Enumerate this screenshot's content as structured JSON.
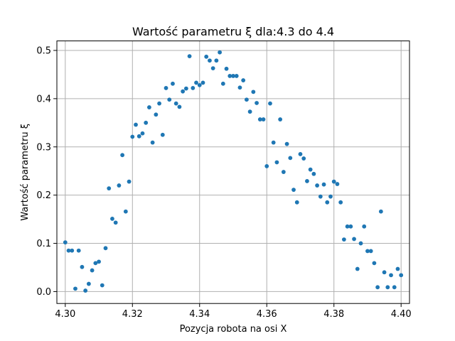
{
  "chart_data": {
    "type": "scatter",
    "title": "Wartość parametru ξ dla:4.3 do 4.4",
    "xlabel": "Pozycja robota na osi X",
    "ylabel": "Wartość parametru ξ",
    "xlim": [
      4.2975,
      4.4025
    ],
    "ylim": [
      -0.0247,
      0.5197
    ],
    "xticks": [
      4.3,
      4.32,
      4.34,
      4.36,
      4.38,
      4.4
    ],
    "xtick_labels": [
      "4.30",
      "4.32",
      "4.34",
      "4.36",
      "4.38",
      "4.40"
    ],
    "yticks": [
      0.0,
      0.1,
      0.2,
      0.3,
      0.4,
      0.5
    ],
    "ytick_labels": [
      "0.0",
      "0.1",
      "0.2",
      "0.3",
      "0.4",
      "0.5"
    ],
    "grid": true,
    "legend": "none",
    "color": "#1f77b4",
    "x": [
      4.3,
      4.301,
      4.302,
      4.303,
      4.304,
      4.305,
      4.306,
      4.307,
      4.308,
      4.309,
      4.31,
      4.311,
      4.312,
      4.313,
      4.314,
      4.315,
      4.316,
      4.317,
      4.318,
      4.319,
      4.32,
      4.321,
      4.322,
      4.323,
      4.324,
      4.325,
      4.326,
      4.327,
      4.328,
      4.329,
      4.33,
      4.331,
      4.332,
      4.333,
      4.334,
      4.335,
      4.336,
      4.337,
      4.338,
      4.339,
      4.34,
      4.341,
      4.342,
      4.343,
      4.344,
      4.345,
      4.346,
      4.347,
      4.348,
      4.349,
      4.35,
      4.351,
      4.352,
      4.353,
      4.354,
      4.355,
      4.356,
      4.357,
      4.358,
      4.359,
      4.36,
      4.361,
      4.362,
      4.363,
      4.364,
      4.365,
      4.366,
      4.367,
      4.368,
      4.369,
      4.37,
      4.371,
      4.372,
      4.373,
      4.374,
      4.375,
      4.376,
      4.377,
      4.378,
      4.379,
      4.38,
      4.381,
      4.382,
      4.383,
      4.384,
      4.385,
      4.386,
      4.387,
      4.388,
      4.389,
      4.39,
      4.391,
      4.392,
      4.393,
      4.394,
      4.395,
      4.396,
      4.397,
      4.398,
      4.399,
      4.4
    ],
    "y": [
      0.102,
      0.085,
      0.085,
      0.006,
      0.085,
      0.051,
      0.002,
      0.016,
      0.044,
      0.059,
      0.062,
      0.013,
      0.09,
      0.214,
      0.151,
      0.143,
      0.22,
      0.283,
      0.166,
      0.228,
      0.321,
      0.346,
      0.322,
      0.328,
      0.35,
      0.382,
      0.309,
      0.367,
      0.39,
      0.325,
      0.422,
      0.398,
      0.431,
      0.39,
      0.383,
      0.415,
      0.421,
      0.488,
      0.422,
      0.433,
      0.428,
      0.433,
      0.487,
      0.479,
      0.463,
      0.479,
      0.496,
      0.431,
      0.462,
      0.447,
      0.447,
      0.447,
      0.423,
      0.438,
      0.398,
      0.373,
      0.414,
      0.391,
      0.357,
      0.357,
      0.26,
      0.39,
      0.309,
      0.268,
      0.357,
      0.248,
      0.306,
      0.277,
      0.211,
      0.185,
      0.285,
      0.276,
      0.229,
      0.253,
      0.244,
      0.22,
      0.197,
      0.222,
      0.185,
      0.197,
      0.228,
      0.223,
      0.185,
      0.108,
      0.135,
      0.135,
      0.109,
      0.047,
      0.1,
      0.135,
      0.084,
      0.084,
      0.059,
      0.009,
      0.166,
      0.04,
      0.009,
      0.034,
      0.009,
      0.047,
      0.034
    ]
  }
}
